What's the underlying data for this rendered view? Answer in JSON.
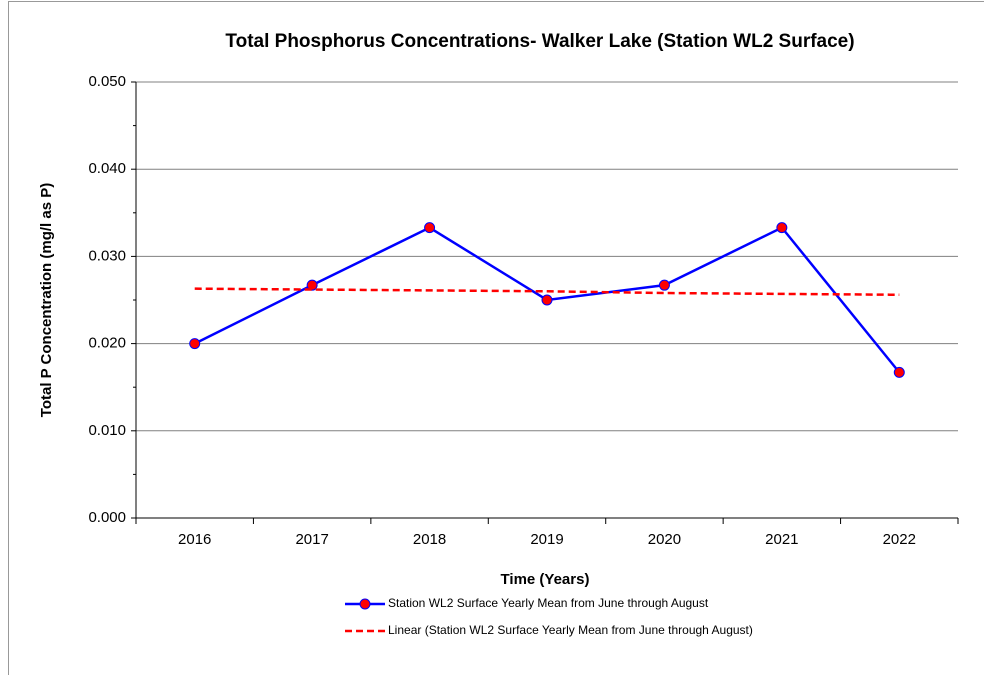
{
  "chart_data": {
    "type": "line",
    "title": "Total Phosphorus  Concentrations- Walker Lake (Station WL2 Surface)",
    "x_label": "Time (Years)",
    "y_label": "Total P Concentration (mg/l as P)",
    "categories": [
      "2016",
      "2017",
      "2018",
      "2019",
      "2020",
      "2021",
      "2022"
    ],
    "series": [
      {
        "name": "Station WL2 Surface Yearly Mean from June through August",
        "color": "#0000ff",
        "marker_color": "#ff0000",
        "marker": true,
        "dashed": false,
        "values": [
          0.02,
          0.0267,
          0.0333,
          0.025,
          0.0267,
          0.0333,
          0.0167
        ]
      },
      {
        "name": "Linear (Station WL2 Surface Yearly Mean from June through August)",
        "color": "#ff0000",
        "marker": false,
        "dashed": true,
        "values": [
          0.0263,
          0.0262,
          0.0261,
          0.026,
          0.0258,
          0.0257,
          0.0256
        ]
      }
    ],
    "ylim": [
      0,
      0.05
    ],
    "yticks": [
      {
        "value": 0,
        "label": "0.000"
      },
      {
        "value": 0.01,
        "label": "0.010"
      },
      {
        "value": 0.02,
        "label": "0.020"
      },
      {
        "value": 0.03,
        "label": "0.030"
      },
      {
        "value": 0.04,
        "label": "0.040"
      },
      {
        "value": 0.05,
        "label": "0.050"
      }
    ],
    "grid": true,
    "legend": "bottom"
  }
}
